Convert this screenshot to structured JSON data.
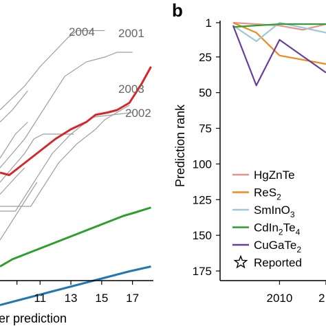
{
  "chart_data": [
    {
      "type": "line",
      "panel": "a (partial)",
      "xlabel": "er prediction",
      "xticks": [
        11,
        13,
        15,
        17
      ],
      "x_range": [
        8.4,
        18.4
      ],
      "y_range": [
        0,
        1
      ],
      "annotations": [
        "2004",
        "2001",
        "2003",
        "2002"
      ],
      "gray_series": [
        {
          "points": [
            [
              8.4,
              0.6
            ],
            [
              10,
              0.7
            ],
            [
              11,
              0.78
            ],
            [
              12.8,
              0.9
            ],
            [
              13.4,
              0.93
            ],
            [
              15.2,
              0.93
            ]
          ]
        },
        {
          "points": [
            [
              8.4,
              0.55
            ],
            [
              9.2,
              0.6
            ],
            [
              10.2,
              0.68
            ]
          ]
        },
        {
          "points": [
            [
              8.4,
              0.36
            ],
            [
              10,
              0.48
            ],
            [
              11,
              0.58
            ],
            [
              12.6,
              0.74
            ],
            [
              14,
              0.8
            ],
            [
              15.2,
              0.82
            ],
            [
              16,
              0.84
            ],
            [
              17,
              0.84
            ]
          ]
        },
        {
          "points": [
            [
              8.4,
              0.2
            ],
            [
              10.4,
              0.2
            ],
            [
              11.2,
              0.28
            ],
            [
              12.2,
              0.38
            ],
            [
              13.4,
              0.46
            ],
            [
              14.6,
              0.52
            ],
            [
              15.2,
              0.56
            ],
            [
              16.8,
              0.62
            ]
          ]
        },
        {
          "points": [
            [
              8.4,
              0.18
            ],
            [
              9.4,
              0.18
            ],
            [
              10.6,
              0.3
            ],
            [
              11.8,
              0.42
            ],
            [
              13,
              0.5
            ],
            [
              14.4,
              0.57
            ],
            [
              17,
              0.59
            ]
          ]
        },
        {
          "points": [
            [
              8.4,
              0.3
            ],
            [
              9.2,
              0.36
            ],
            [
              10,
              0.42
            ],
            [
              10.6,
              0.48
            ],
            [
              11.2,
              0.5
            ],
            [
              13.2,
              0.5
            ]
          ]
        },
        {
          "points": [
            [
              8.4,
              0.06
            ],
            [
              9.6,
              0.18
            ],
            [
              10.8,
              0.3
            ]
          ]
        },
        {
          "points": [
            [
              8.4,
              0.4
            ],
            [
              9.4,
              0.5
            ],
            [
              10.2,
              0.55
            ]
          ]
        },
        {
          "points": [
            [
              8.4,
              0.25
            ],
            [
              9.4,
              0.32
            ],
            [
              10,
              0.36
            ]
          ]
        }
      ],
      "series": [
        {
          "color": "#d62728",
          "points": [
            [
              8.4,
              0.34
            ],
            [
              9,
              0.33
            ],
            [
              9.6,
              0.36
            ],
            [
              10.4,
              0.4
            ],
            [
              11.2,
              0.44
            ],
            [
              12,
              0.48
            ],
            [
              13,
              0.52
            ],
            [
              14,
              0.55
            ],
            [
              14.6,
              0.58
            ],
            [
              15.4,
              0.59
            ],
            [
              16,
              0.6
            ],
            [
              16.8,
              0.63
            ],
            [
              17.6,
              0.71
            ],
            [
              18.2,
              0.78
            ]
          ]
        },
        {
          "color": "#2ca02c",
          "points": [
            [
              8.4,
              -0.05
            ],
            [
              9.2,
              -0.02
            ],
            [
              10.4,
              0.01
            ],
            [
              11.6,
              0.04
            ],
            [
              12.8,
              0.07
            ],
            [
              14,
              0.1
            ],
            [
              15.2,
              0.13
            ],
            [
              16.4,
              0.16
            ],
            [
              17.2,
              0.175
            ],
            [
              18.2,
              0.195
            ]
          ]
        },
        {
          "color": "#1f77b4",
          "points": [
            [
              8.4,
              -0.21
            ],
            [
              9.6,
              -0.19
            ],
            [
              10.8,
              -0.17
            ],
            [
              12,
              -0.15
            ],
            [
              13.2,
              -0.13
            ],
            [
              14.4,
              -0.11
            ],
            [
              15.6,
              -0.09
            ],
            [
              16.8,
              -0.07
            ],
            [
              18.2,
              -0.05
            ]
          ]
        }
      ]
    },
    {
      "type": "line",
      "panel": "b",
      "panel_label": "b",
      "ylabel": "Prediction rank",
      "yticks": [
        1,
        25,
        50,
        75,
        100,
        125,
        150,
        175
      ],
      "y_range": [
        -5,
        180
      ],
      "y_inverted": true,
      "xticks": [
        2010
      ],
      "x_range": [
        2007.5,
        2012
      ],
      "partial_tick": "2",
      "legend_location": "center",
      "series": [
        {
          "name": "HgZnTe",
          "color": "#e8938f",
          "points": [
            [
              2008,
              1
            ],
            [
              2010,
              3
            ],
            [
              2011,
              6
            ],
            [
              2012,
              2
            ]
          ]
        },
        {
          "name": "ReS2",
          "color": "#f08a1e",
          "points": [
            [
              2008,
              1
            ],
            [
              2009,
              8
            ],
            [
              2010,
              24
            ],
            [
              2012,
              30
            ]
          ]
        },
        {
          "name": "SmInO3",
          "color": "#9cc8d8",
          "points": [
            [
              2008,
              3
            ],
            [
              2009,
              14
            ],
            [
              2010,
              1
            ],
            [
              2012,
              8
            ]
          ]
        },
        {
          "name": "CdIn2Te4",
          "color": "#2ca02c",
          "points": [
            [
              2008,
              4
            ],
            [
              2009,
              3
            ],
            [
              2010,
              2
            ],
            [
              2012,
              2
            ]
          ]
        },
        {
          "name": "CuGaTe2",
          "color": "#6a3d9a",
          "points": [
            [
              2008,
              3
            ],
            [
              2009,
              45
            ],
            [
              2010,
              13
            ],
            [
              2012,
              36
            ]
          ]
        }
      ],
      "legend": [
        {
          "id": "hgznte",
          "name": "HgZnTe",
          "color": "#e8938f"
        },
        {
          "id": "res2",
          "name": "ReS",
          "sub": "2",
          "color": "#f08a1e"
        },
        {
          "id": "sminо3",
          "name": "SmInO",
          "sub": "3",
          "color": "#9cc8d8"
        },
        {
          "id": "cdin2te4",
          "name": "CdIn",
          "sub": "2",
          "rest": "Te",
          "sub2": "4",
          "color": "#2ca02c"
        },
        {
          "id": "cugate2",
          "name": "CuGaTe",
          "sub": "2",
          "color": "#6a3d9a"
        },
        {
          "id": "reported",
          "name": "Reported",
          "marker": "star"
        }
      ]
    }
  ]
}
